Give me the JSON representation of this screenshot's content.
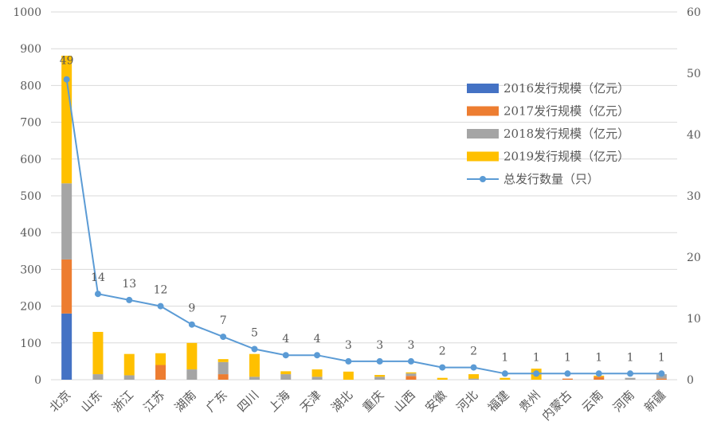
{
  "chart_data": {
    "type": "bar",
    "stacked": true,
    "categories": [
      "北京",
      "山东",
      "浙江",
      "江苏",
      "湖南",
      "广东",
      "四川",
      "上海",
      "天津",
      "湖北",
      "重庆",
      "山西",
      "安徽",
      "河北",
      "福建",
      "贵州",
      "内蒙古",
      "云南",
      "河南",
      "新疆"
    ],
    "series": [
      {
        "name": "2016发行规模（亿元）",
        "color": "#4472C4",
        "axis": "left",
        "values": [
          180,
          0,
          0,
          0,
          0,
          0,
          0,
          0,
          0,
          0,
          0,
          0,
          0,
          0,
          0,
          0,
          0,
          0,
          0,
          0
        ]
      },
      {
        "name": "2017发行规模（亿元）",
        "color": "#ED7D31",
        "axis": "left",
        "values": [
          147,
          0,
          0,
          40,
          0,
          15,
          0,
          0,
          0,
          0,
          0,
          10,
          0,
          0,
          0,
          0,
          3,
          8,
          0,
          3
        ]
      },
      {
        "name": "2018发行规模（亿元）",
        "color": "#A5A5A5",
        "axis": "left",
        "values": [
          207,
          15,
          12,
          0,
          28,
          33,
          8,
          15,
          8,
          0,
          8,
          7,
          0,
          3,
          0,
          0,
          0,
          0,
          5,
          12
        ]
      },
      {
        "name": "2019发行规模（亿元）",
        "color": "#FFC000",
        "axis": "left",
        "values": [
          347,
          115,
          58,
          32,
          72,
          8,
          62,
          8,
          20,
          22,
          5,
          3,
          5,
          12,
          5,
          30,
          0,
          3,
          0,
          0
        ]
      },
      {
        "name": "总发行数量（只）",
        "type": "line",
        "color": "#5B9BD5",
        "axis": "right",
        "values": [
          49,
          14,
          13,
          12,
          9,
          7,
          5,
          4,
          4,
          3,
          3,
          3,
          2,
          2,
          1,
          1,
          1,
          1,
          1,
          1
        ]
      }
    ],
    "yleft": {
      "min": 0,
      "max": 1000,
      "ticks": [
        "0",
        "100",
        "200",
        "300",
        "400",
        "500",
        "600",
        "700",
        "800",
        "900",
        "1000"
      ]
    },
    "yright": {
      "min": 0,
      "max": 60,
      "ticks": [
        "0",
        "10",
        "20",
        "30",
        "40",
        "50",
        "60"
      ]
    },
    "grid": true,
    "legend_position": "right"
  }
}
